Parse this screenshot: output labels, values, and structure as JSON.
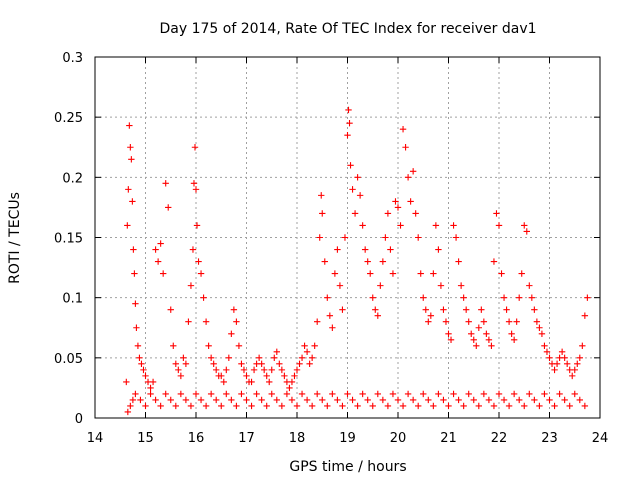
{
  "chart_data": {
    "type": "scatter",
    "title": "Day 175 of 2014, Rate Of TEC Index for receiver dav1",
    "xlabel": "GPS time / hours",
    "ylabel": "ROTI / TECUs",
    "xlim": [
      14,
      24
    ],
    "ylim": [
      0,
      0.3
    ],
    "grid": true,
    "marker": "plus",
    "xticks": [
      14,
      15,
      16,
      17,
      18,
      19,
      20,
      21,
      22,
      23,
      24
    ],
    "yticks": [
      0,
      0.05,
      0.1,
      0.15,
      0.2,
      0.25,
      0.3
    ],
    "x_tick_labels": [
      "14",
      "15",
      "16",
      "17",
      "18",
      "19",
      "20",
      "21",
      "22",
      "23",
      "24"
    ],
    "y_tick_labels": [
      "0",
      "0.05",
      "0.1",
      "0.15",
      "0.2",
      "0.25",
      "0.3"
    ],
    "color": "#ff0000",
    "series": [
      {
        "name": "dav1",
        "x": [
          14.62,
          14.64,
          14.66,
          14.68,
          14.7,
          14.72,
          14.74,
          14.76,
          14.78,
          14.8,
          14.82,
          14.85,
          14.88,
          14.92,
          14.96,
          15.0,
          15.05,
          15.1,
          15.15,
          15.2,
          15.25,
          15.3,
          15.35,
          15.4,
          15.45,
          15.5,
          15.55,
          15.6,
          15.65,
          15.7,
          15.75,
          15.8,
          15.85,
          15.9,
          15.94,
          15.96,
          15.98,
          16.0,
          16.02,
          16.05,
          16.1,
          16.15,
          16.2,
          16.25,
          16.3,
          16.35,
          16.4,
          16.45,
          16.5,
          16.55,
          16.6,
          16.65,
          16.7,
          16.75,
          16.8,
          16.85,
          16.9,
          16.95,
          17.0,
          17.05,
          17.1,
          17.15,
          17.2,
          17.25,
          17.3,
          17.35,
          17.4,
          17.45,
          17.5,
          17.55,
          17.6,
          17.65,
          17.7,
          17.75,
          17.8,
          17.85,
          17.9,
          17.95,
          18.0,
          18.05,
          18.1,
          18.15,
          18.2,
          18.25,
          18.3,
          18.35,
          18.4,
          18.45,
          18.48,
          18.5,
          18.55,
          18.6,
          18.65,
          18.7,
          18.75,
          18.8,
          18.85,
          18.9,
          18.95,
          19.0,
          19.02,
          19.04,
          19.06,
          19.1,
          19.15,
          19.2,
          19.25,
          19.3,
          19.35,
          19.4,
          19.45,
          19.5,
          19.55,
          19.6,
          19.65,
          19.7,
          19.75,
          19.8,
          19.85,
          19.9,
          19.95,
          20.0,
          20.05,
          20.1,
          20.15,
          20.2,
          20.25,
          20.3,
          20.35,
          20.4,
          20.45,
          20.5,
          20.55,
          20.6,
          20.65,
          20.7,
          20.75,
          20.8,
          20.85,
          20.9,
          20.95,
          21.0,
          21.05,
          21.1,
          21.15,
          21.2,
          21.25,
          21.3,
          21.35,
          21.4,
          21.45,
          21.5,
          21.55,
          21.6,
          21.65,
          21.7,
          21.75,
          21.8,
          21.85,
          21.9,
          21.95,
          22.0,
          22.05,
          22.1,
          22.15,
          22.2,
          22.25,
          22.3,
          22.35,
          22.4,
          22.45,
          22.5,
          22.55,
          22.6,
          22.65,
          22.7,
          22.75,
          22.8,
          22.85,
          22.9,
          22.95,
          23.0,
          23.05,
          23.1,
          23.15,
          23.2,
          23.25,
          23.3,
          23.35,
          23.4,
          23.45,
          23.5,
          23.55,
          23.6,
          23.65,
          23.7,
          23.75,
          14.65,
          14.7,
          14.75,
          14.8,
          14.9,
          15.0,
          15.1,
          15.2,
          15.3,
          15.4,
          15.5,
          15.6,
          15.7,
          15.8,
          15.9,
          16.0,
          16.1,
          16.2,
          16.3,
          16.4,
          16.5,
          16.6,
          16.7,
          16.8,
          16.9,
          17.0,
          17.1,
          17.2,
          17.3,
          17.4,
          17.5,
          17.6,
          17.7,
          17.8,
          17.9,
          18.0,
          18.1,
          18.2,
          18.3,
          18.4,
          18.5,
          18.6,
          18.7,
          18.8,
          18.9,
          19.0,
          19.1,
          19.2,
          19.3,
          19.4,
          19.5,
          19.6,
          19.7,
          19.8,
          19.9,
          20.0,
          20.1,
          20.2,
          20.3,
          20.4,
          20.5,
          20.6,
          20.7,
          20.8,
          20.9,
          21.0,
          21.1,
          21.2,
          21.3,
          21.4,
          21.5,
          21.6,
          21.7,
          21.8,
          21.9,
          22.0,
          22.1,
          22.2,
          22.3,
          22.4,
          22.5,
          22.6,
          22.7,
          22.8,
          22.9,
          23.0,
          23.1,
          23.2,
          23.3,
          23.4,
          23.5,
          23.6,
          23.7
        ],
        "y": [
          0.03,
          0.16,
          0.19,
          0.243,
          0.225,
          0.215,
          0.18,
          0.14,
          0.12,
          0.095,
          0.075,
          0.06,
          0.05,
          0.045,
          0.04,
          0.035,
          0.03,
          0.025,
          0.03,
          0.14,
          0.13,
          0.145,
          0.12,
          0.195,
          0.175,
          0.09,
          0.06,
          0.045,
          0.04,
          0.035,
          0.05,
          0.045,
          0.08,
          0.11,
          0.14,
          0.195,
          0.225,
          0.19,
          0.16,
          0.13,
          0.12,
          0.1,
          0.08,
          0.06,
          0.05,
          0.045,
          0.04,
          0.035,
          0.035,
          0.03,
          0.04,
          0.05,
          0.07,
          0.09,
          0.08,
          0.06,
          0.045,
          0.04,
          0.035,
          0.03,
          0.03,
          0.04,
          0.045,
          0.05,
          0.045,
          0.04,
          0.035,
          0.03,
          0.04,
          0.05,
          0.055,
          0.045,
          0.04,
          0.035,
          0.03,
          0.025,
          0.03,
          0.035,
          0.04,
          0.045,
          0.05,
          0.06,
          0.055,
          0.045,
          0.05,
          0.06,
          0.08,
          0.15,
          0.185,
          0.17,
          0.13,
          0.1,
          0.085,
          0.075,
          0.12,
          0.14,
          0.11,
          0.09,
          0.15,
          0.235,
          0.256,
          0.245,
          0.21,
          0.19,
          0.17,
          0.2,
          0.185,
          0.16,
          0.14,
          0.13,
          0.12,
          0.1,
          0.09,
          0.085,
          0.11,
          0.13,
          0.15,
          0.17,
          0.14,
          0.12,
          0.18,
          0.175,
          0.16,
          0.24,
          0.225,
          0.2,
          0.18,
          0.205,
          0.17,
          0.15,
          0.12,
          0.1,
          0.09,
          0.08,
          0.085,
          0.12,
          0.16,
          0.14,
          0.11,
          0.09,
          0.08,
          0.07,
          0.065,
          0.16,
          0.15,
          0.13,
          0.11,
          0.1,
          0.09,
          0.08,
          0.07,
          0.065,
          0.06,
          0.075,
          0.09,
          0.08,
          0.07,
          0.065,
          0.06,
          0.13,
          0.17,
          0.16,
          0.12,
          0.1,
          0.09,
          0.08,
          0.07,
          0.065,
          0.08,
          0.1,
          0.12,
          0.16,
          0.155,
          0.11,
          0.1,
          0.09,
          0.08,
          0.075,
          0.07,
          0.06,
          0.055,
          0.05,
          0.045,
          0.04,
          0.045,
          0.05,
          0.055,
          0.05,
          0.045,
          0.04,
          0.035,
          0.04,
          0.045,
          0.05,
          0.06,
          0.085,
          0.1,
          0.005,
          0.01,
          0.015,
          0.02,
          0.015,
          0.01,
          0.02,
          0.015,
          0.01,
          0.02,
          0.015,
          0.01,
          0.02,
          0.015,
          0.01,
          0.02,
          0.015,
          0.01,
          0.02,
          0.015,
          0.01,
          0.02,
          0.015,
          0.01,
          0.02,
          0.015,
          0.01,
          0.02,
          0.015,
          0.01,
          0.02,
          0.015,
          0.01,
          0.02,
          0.015,
          0.01,
          0.02,
          0.015,
          0.01,
          0.02,
          0.015,
          0.01,
          0.02,
          0.015,
          0.01,
          0.02,
          0.015,
          0.01,
          0.02,
          0.015,
          0.01,
          0.02,
          0.015,
          0.01,
          0.02,
          0.015,
          0.01,
          0.02,
          0.015,
          0.01,
          0.02,
          0.015,
          0.01,
          0.02,
          0.015,
          0.01,
          0.02,
          0.015,
          0.01,
          0.02,
          0.015,
          0.01,
          0.02,
          0.015,
          0.01,
          0.02,
          0.015,
          0.01,
          0.02,
          0.015,
          0.01,
          0.02,
          0.015,
          0.01,
          0.02,
          0.015,
          0.01,
          0.02,
          0.015,
          0.01,
          0.02,
          0.015,
          0.01
        ]
      }
    ]
  }
}
